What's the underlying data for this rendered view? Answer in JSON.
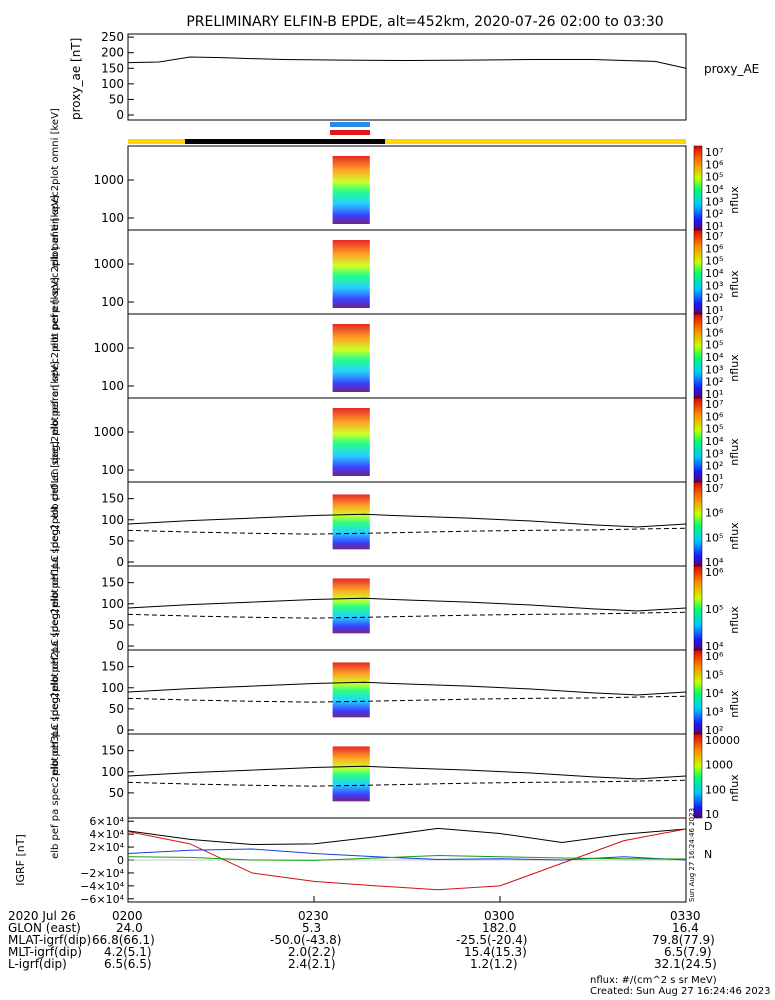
{
  "chart_data": {
    "type": "multi-panel",
    "title": "PRELIMINARY ELFIN-B EPDE, alt=452km, 2020-07-26 02:00 to 03:30",
    "time_range": [
      "02:00",
      "03:30"
    ],
    "colors": {
      "epd_blue": "#2a8ae6",
      "epd_red": "#e0161a",
      "ribbon_yellow": "#ffd400",
      "ribbon_black": "#000000"
    },
    "ae_panel": {
      "ylabel": "proxy_ae [nT]",
      "legend": "proxy_AE",
      "ylim": [
        0,
        260
      ],
      "yticks": [
        "0",
        "50",
        "100",
        "150",
        "200",
        "250"
      ],
      "series": {
        "t_min": [
          0,
          5,
          10,
          15,
          25,
          35,
          45,
          55,
          65,
          75,
          85,
          90
        ],
        "ae": [
          168,
          170,
          186,
          184,
          178,
          176,
          175,
          176,
          178,
          178,
          172,
          150
        ]
      }
    },
    "spectra_panels": [
      {
        "label": "elb pef en spec2plot omni [keV]",
        "yticks": [
          "1000",
          "100"
        ],
        "cb_ticks": [
          "10⁷",
          "10⁶",
          "10⁵",
          "10⁴",
          "10³",
          "10²",
          "10¹"
        ],
        "cb_label": "nflux"
      },
      {
        "label": "elb pef en spec2plot anti [keV]",
        "yticks": [
          "1000",
          "100"
        ],
        "cb_ticks": [
          "10⁷",
          "10⁶",
          "10⁵",
          "10⁴",
          "10³",
          "10²",
          "10¹"
        ],
        "cb_label": "nflux"
      },
      {
        "label": "elb pef en spec2plot perp [keV]",
        "yticks": [
          "1000",
          "100"
        ],
        "cb_ticks": [
          "10⁷",
          "10⁶",
          "10⁵",
          "10⁴",
          "10³",
          "10²",
          "10¹"
        ],
        "cb_label": "nflux"
      },
      {
        "label": "elb pef en spec2plot para [keV]",
        "yticks": [
          "1000",
          "100"
        ],
        "cb_ticks": [
          "10⁷",
          "10⁶",
          "10⁵",
          "10⁴",
          "10³",
          "10²",
          "10¹"
        ],
        "cb_label": "nflux"
      }
    ],
    "pa_panels": [
      {
        "label": "elb pef pa spec2plot ch0LC [deg]",
        "yticks": [
          "150",
          "100",
          "50",
          "0"
        ],
        "cb_ticks": [
          "10⁷",
          "10⁶",
          "10⁵",
          "10⁴"
        ],
        "cb_label": "nflux"
      },
      {
        "label": "elb pef pa spec2plot ch1LC [deg]",
        "yticks": [
          "150",
          "100",
          "50",
          "0"
        ],
        "cb_ticks": [
          "10⁶",
          "10⁵",
          "10⁴"
        ],
        "cb_label": "nflux"
      },
      {
        "label": "elb pef pa spec2plot ch2LC [deg]",
        "yticks": [
          "150",
          "100",
          "50",
          "0"
        ],
        "cb_ticks": [
          "10⁶",
          "10⁵",
          "10⁴",
          "10³",
          "10²"
        ],
        "cb_label": "nflux"
      },
      {
        "label": "elb pef pa spec2plot ch3LC [deg]",
        "yticks": [
          "150",
          "100",
          "50"
        ],
        "cb_ticks": [
          "10000",
          "1000",
          "100",
          "10"
        ],
        "cb_label": "nflux"
      }
    ],
    "pa_lc_series": {
      "t_min": [
        0,
        10,
        20,
        30,
        38,
        45,
        55,
        65,
        75,
        82,
        90
      ],
      "upper_deg": [
        90,
        98,
        104,
        110,
        113,
        109,
        104,
        97,
        88,
        83,
        90
      ],
      "lower_deg": [
        75,
        71,
        68,
        66,
        68,
        70,
        73,
        75,
        76,
        78,
        80
      ]
    },
    "grf_panel": {
      "ylabel": "IGRF [nT]",
      "ylim": [
        -65000,
        65000
      ],
      "yticks": [
        "6×10⁴",
        "4×10⁴",
        "2×10⁴",
        "0",
        "−2×10⁴",
        "−4×10⁴",
        "−6×10⁴"
      ],
      "legend": [
        "D",
        "N"
      ],
      "side_note": "Sun Aug 27 16:24:46 2023",
      "series": {
        "t_min": [
          0,
          10,
          20,
          30,
          40,
          50,
          60,
          70,
          80,
          90
        ],
        "total": [
          45000,
          32000,
          24000,
          25000,
          36000,
          49000,
          41000,
          27000,
          40000,
          48000
        ],
        "z": [
          44000,
          25000,
          -20000,
          -33000,
          -40000,
          -46000,
          -40000,
          -5000,
          30000,
          48000
        ],
        "x": [
          10000,
          15000,
          17000,
          10000,
          5000,
          1000,
          2000,
          0,
          5000,
          0
        ],
        "y": [
          5000,
          4000,
          0,
          -500,
          3000,
          7000,
          5000,
          3000,
          2000,
          1500
        ]
      }
    }
  },
  "footer": {
    "rows": [
      {
        "label": "2020 Jul 26",
        "values": [
          "0200",
          "0230",
          "0300",
          "0330"
        ]
      },
      {
        "label": "GLON (east)",
        "values": [
          "24.0",
          "5.3",
          "182.0",
          "16.4"
        ]
      },
      {
        "label": "MLAT-igrf(dip)",
        "values": [
          "66.8(66.1)",
          "-50.0(-43.8)",
          "-25.5(-20.4)",
          "79.8(77.9)"
        ]
      },
      {
        "label": "MLT-igrf(dip)",
        "values": [
          "4.2(5.1)",
          "2.0(2.2)",
          "15.4(15.3)",
          "6.5(7.9)"
        ]
      },
      {
        "label": "L-igrf(dip)",
        "values": [
          "6.5(6.5)",
          "2.4(2.1)",
          "1.2(1.2)",
          "32.1(24.5)"
        ]
      }
    ],
    "units_note": "nflux: #/(cm^2 s sr MeV)",
    "created": "Created: Sun Aug 27 16:24:46 2023"
  }
}
